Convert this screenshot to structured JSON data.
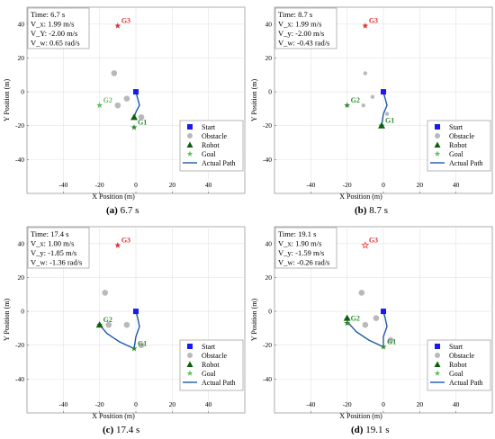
{
  "chart_data": [
    {
      "type": "scatter",
      "caption_label": "(a)",
      "caption_text": "6.7 s",
      "xlabel": "X Position (m)",
      "ylabel": "Y Position (m)",
      "xlim": [
        -60,
        60
      ],
      "ylim": [
        -60,
        50
      ],
      "xticks": [
        -40,
        -20,
        0,
        20,
        40
      ],
      "yticks": [
        -40,
        -20,
        0,
        20,
        40
      ],
      "grid": true,
      "legend_position": "lower-right",
      "info": [
        "Time:  6.7 s",
        "V_x: 1.99 m/s",
        "V_Y: -2.00 m/s",
        "V_w: 0.65 rad/s"
      ],
      "start": [
        0,
        0
      ],
      "robot": [
        -1,
        -15
      ],
      "obstacles": [
        [
          -12,
          11
        ],
        [
          -10,
          -8
        ],
        [
          -5,
          -4
        ],
        [
          3,
          -15
        ]
      ],
      "obstacle_size": "large",
      "goals": [
        {
          "label": "G1",
          "x": -1,
          "y": -21,
          "color": "#2e8b2e"
        },
        {
          "label": "G2",
          "x": -20,
          "y": -8,
          "color": "#5cc05c"
        },
        {
          "label": "G3",
          "x": -10,
          "y": 39,
          "color": "#e03030"
        }
      ],
      "path": [
        [
          0,
          0
        ],
        [
          1,
          -4
        ],
        [
          2,
          -8
        ],
        [
          0,
          -12
        ],
        [
          -1,
          -15
        ]
      ],
      "legend": [
        "Start",
        "Obstacle",
        "Robot",
        "Goal",
        "Actual Path"
      ]
    },
    {
      "type": "scatter",
      "caption_label": "(b)",
      "caption_text": "8.7 s",
      "xlabel": "X Position (m)",
      "ylabel": "Y Position (m)",
      "xlim": [
        -60,
        60
      ],
      "ylim": [
        -60,
        50
      ],
      "xticks": [
        -40,
        -20,
        0,
        20,
        40
      ],
      "yticks": [
        -40,
        -20,
        0,
        20,
        40
      ],
      "grid": true,
      "legend_position": "lower-right",
      "info": [
        "Time:  8.7 s",
        "V_x: 1.99 m/s",
        "V_y: -2.00 m/s",
        "V_w: -0.43 rad/s"
      ],
      "start": [
        0,
        0
      ],
      "robot": [
        -1,
        -20
      ],
      "obstacles": [
        [
          -10,
          11
        ],
        [
          -11,
          -8
        ],
        [
          -6,
          -3
        ],
        [
          2,
          -13
        ]
      ],
      "obstacle_size": "small",
      "goals": [
        {
          "label": "G1",
          "x": -1,
          "y": -20,
          "color": "#2e8b2e"
        },
        {
          "label": "G2",
          "x": -20,
          "y": -8,
          "color": "#2e8b2e"
        },
        {
          "label": "G3",
          "x": -10,
          "y": 39,
          "color": "#e03030"
        }
      ],
      "path": [
        [
          0,
          0
        ],
        [
          1,
          -4
        ],
        [
          2,
          -8
        ],
        [
          0,
          -13
        ],
        [
          -1,
          -20
        ]
      ],
      "legend": [
        "Start",
        "Obstacle",
        "Robot",
        "Goal",
        "Actual Path"
      ]
    },
    {
      "type": "scatter",
      "caption_label": "(c)",
      "caption_text": "17.4 s",
      "xlabel": "X Position (m)",
      "ylabel": "Y Position (m)",
      "xlim": [
        -60,
        60
      ],
      "ylim": [
        -60,
        50
      ],
      "xticks": [
        -40,
        -20,
        0,
        20,
        40
      ],
      "yticks": [
        -40,
        -20,
        0,
        20,
        40
      ],
      "grid": true,
      "legend_position": "lower-right",
      "info": [
        "Time:  17.4 s",
        "V_x: 1.00 m/s",
        "V_y: -1.85 m/s",
        "V_w: -1.36 rad/s"
      ],
      "start": [
        0,
        0
      ],
      "robot": [
        -20,
        -8
      ],
      "obstacles": [
        [
          -17,
          11
        ],
        [
          -15,
          -8
        ],
        [
          -5,
          -8
        ],
        [
          3,
          -20
        ]
      ],
      "obstacle_size": "large",
      "goals": [
        {
          "label": "G1",
          "x": -1,
          "y": -22,
          "color": "#2e8b2e"
        },
        {
          "label": "G2",
          "x": -20,
          "y": -8,
          "color": "#2e8b2e"
        },
        {
          "label": "G3",
          "x": -10,
          "y": 39,
          "color": "#e03030"
        }
      ],
      "path": [
        [
          0,
          0
        ],
        [
          1,
          -4
        ],
        [
          2,
          -9
        ],
        [
          0,
          -15
        ],
        [
          -1,
          -22
        ],
        [
          -9,
          -18
        ],
        [
          -16,
          -13
        ],
        [
          -20,
          -8
        ]
      ],
      "legend": [
        "Start",
        "Obstacle",
        "Robot",
        "Goal",
        "Actual Path"
      ]
    },
    {
      "type": "scatter",
      "caption_label": "(d)",
      "caption_text": "19.1 s",
      "xlabel": "X Position (m)",
      "ylabel": "Y Position (m)",
      "xlim": [
        -60,
        60
      ],
      "ylim": [
        -60,
        50
      ],
      "xticks": [
        -40,
        -20,
        0,
        20,
        40
      ],
      "yticks": [
        -40,
        -20,
        0,
        20,
        40
      ],
      "grid": true,
      "legend_position": "lower-right",
      "info": [
        "Time:  19.1 s",
        "V_x: 1.90 m/s",
        "V_y: -1.59 m/s",
        "V_w: -0.26 rad/s"
      ],
      "start": [
        0,
        0
      ],
      "robot": [
        -20,
        -4
      ],
      "obstacles": [
        [
          -12,
          11
        ],
        [
          -10,
          -8
        ],
        [
          -4,
          -4
        ],
        [
          4,
          -17
        ]
      ],
      "obstacle_size": "large",
      "goals": [
        {
          "label": "G1",
          "x": 0,
          "y": -21,
          "color": "#2e8b2e"
        },
        {
          "label": "G2",
          "x": -20,
          "y": -7,
          "color": "#2e8b2e"
        },
        {
          "label": "G3",
          "x": -10,
          "y": 39,
          "color": "#ffffff",
          "stroke": "#e03030"
        }
      ],
      "path": [
        [
          0,
          0
        ],
        [
          1,
          -4
        ],
        [
          2,
          -9
        ],
        [
          0,
          -15
        ],
        [
          0,
          -21
        ],
        [
          -8,
          -17
        ],
        [
          -15,
          -12
        ],
        [
          -20,
          -6
        ],
        [
          -20,
          -4
        ]
      ],
      "legend": [
        "Start",
        "Obstacle",
        "Robot",
        "Goal",
        "Actual Path"
      ]
    }
  ]
}
